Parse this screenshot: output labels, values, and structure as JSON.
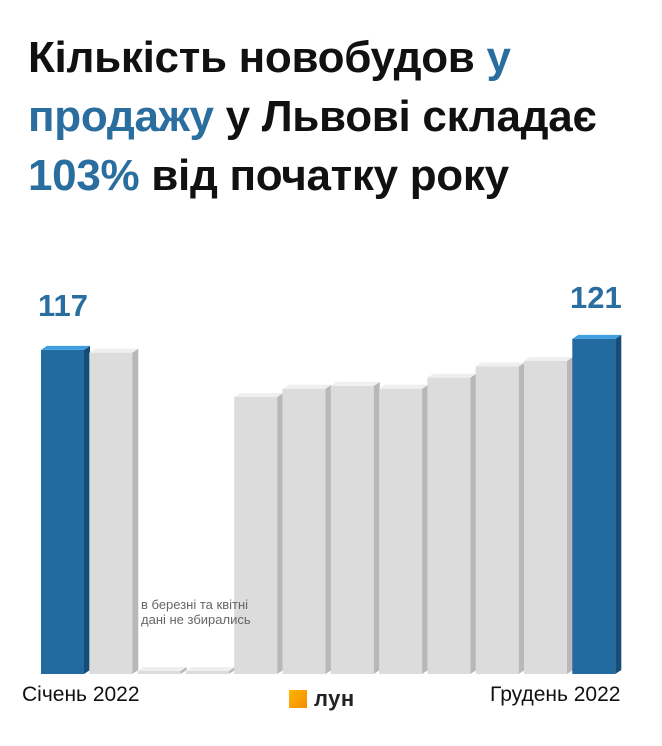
{
  "title": {
    "parts": [
      {
        "text": "Кількість новобудов ",
        "hl": false
      },
      {
        "text": "у продажу",
        "hl": true
      },
      {
        "text": " у Львові складає ",
        "hl": false
      },
      {
        "text": "103%",
        "hl": true
      },
      {
        "text": " від початку року",
        "hl": false
      }
    ]
  },
  "colors": {
    "accent": "#2a6d9f",
    "bar_default": "#dddcdc",
    "bar_default_side": "#b9b7b8",
    "bar_highlight": "#226aa0",
    "bar_highlight_side": "#144d78",
    "bar_highlight_top": "#3e9ee0"
  },
  "chart_data": {
    "type": "bar",
    "values": [
      117,
      116,
      null,
      null,
      100,
      103,
      104,
      103,
      107,
      111,
      113,
      121
    ],
    "highlight": [
      true,
      false,
      false,
      false,
      false,
      false,
      false,
      false,
      false,
      false,
      false,
      true
    ],
    "first_label": "117",
    "last_label": "121",
    "missing_note": "в березні та квітні дані не збирались",
    "x_start_label": "Січень 2022",
    "x_end_label": "Грудень 2022",
    "ylim": [
      0,
      140
    ]
  },
  "brand": {
    "logo_text": "лун",
    "logo_icon": "lun-square-icon"
  }
}
